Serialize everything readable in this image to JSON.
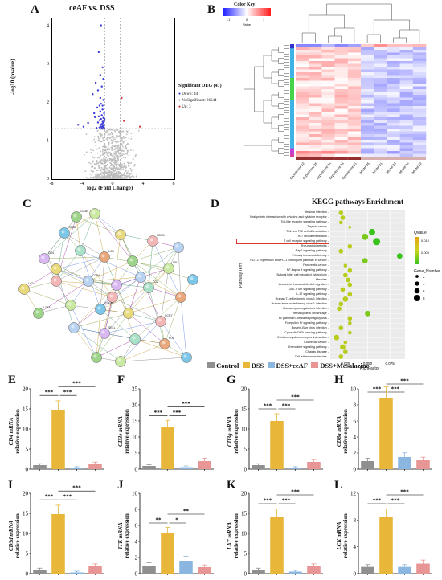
{
  "panel_labels": {
    "A": "A",
    "B": "B",
    "C": "C",
    "D": "D",
    "E": "E",
    "F": "F",
    "G": "G",
    "H": "H",
    "I": "I",
    "J": "J",
    "K": "K",
    "L": "L"
  },
  "volcano": {
    "title": "ceAF vs. DSS",
    "xlabel": "log2 (Fold Change)",
    "ylabel": "-log10 (pvalue)",
    "legend_title": "Significant DEG (47)",
    "legend_items": [
      {
        "label": "Down: 44",
        "color": "#3a3ad6"
      },
      {
        "label": "NoSignificant: 36644",
        "color": "#bdbdbd"
      },
      {
        "label": "Up: 3",
        "color": "#d63a3a"
      }
    ]
  },
  "heatmap": {
    "color_key_label": "Color Key",
    "value_label": "Value",
    "scale_ticks": [
      "-1",
      "0",
      "1"
    ],
    "columns": [
      "Experiment-22",
      "Experiment-25",
      "Experiment-24",
      "Experiment-23",
      "Experiment-21",
      "Model-25",
      "Model-21",
      "Model-23",
      "Model-24",
      "Model-22"
    ]
  },
  "kegg": {
    "title": "KEGG pathways Enrichment",
    "ylabel": "Pathway.Term",
    "xlabel": "RichFactor",
    "legend_qvalue_title": "Qvalue",
    "legend_gene_title": "Gene_Number",
    "highlight": "T cell receptor signaling pathway",
    "colors": {
      "low": "#e8a013",
      "mid": "#c9d51b",
      "high": "#38c21a"
    },
    "qvalue_ticks": [
      "0.010",
      "0.005"
    ],
    "gene_ticks": [
      "2",
      "4",
      "6",
      "8"
    ],
    "x_ticks": [
      "0.025",
      "0.050",
      "0.075"
    ],
    "rows": [
      {
        "term": "Yersinia infection",
        "rich": 0.02,
        "n": 3
      },
      {
        "term": "Viral protein interaction with cytokine and cytokine receptor",
        "rich": 0.022,
        "n": 3
      },
      {
        "term": "Toll-like receptor signaling pathway",
        "rich": 0.02,
        "n": 2
      },
      {
        "term": "Thyroid cancer",
        "rich": 0.03,
        "n": 1
      },
      {
        "term": "Th1 and Th2 cell differentiation",
        "rich": 0.055,
        "n": 5
      },
      {
        "term": "Th17 cell differentiation",
        "rich": 0.047,
        "n": 5
      },
      {
        "term": "T cell receptor signaling pathway",
        "rich": 0.06,
        "n": 6
      },
      {
        "term": "Rheumatoid arthritis",
        "rich": 0.03,
        "n": 3
      },
      {
        "term": "Rap1 signaling pathway",
        "rich": 0.02,
        "n": 3
      },
      {
        "term": "Primary immunodeficiency",
        "rich": 0.086,
        "n": 4
      },
      {
        "term": "PD-L1 expression and PD-1 checkpoint pathway in cancer",
        "rich": 0.047,
        "n": 4
      },
      {
        "term": "Pancreatic cancer",
        "rich": 0.025,
        "n": 2
      },
      {
        "term": "NF-kappa B signaling pathway",
        "rich": 0.03,
        "n": 3
      },
      {
        "term": "Natural killer cell mediated cytotoxicity",
        "rich": 0.025,
        "n": 3
      },
      {
        "term": "Measles",
        "rich": 0.028,
        "n": 3
      },
      {
        "term": "Leukocyte transendothelial migration",
        "rich": 0.03,
        "n": 3
      },
      {
        "term": "JAK-STAT signaling pathway",
        "rich": 0.022,
        "n": 3
      },
      {
        "term": "IL-17 signaling pathway",
        "rich": 0.03,
        "n": 3
      },
      {
        "term": "Human T-cell leukemia virus 1 infection",
        "rich": 0.025,
        "n": 4
      },
      {
        "term": "Human immunodeficiency virus 1 infection",
        "rich": 0.02,
        "n": 3
      },
      {
        "term": "Human cytomegalovirus infection",
        "rich": 0.018,
        "n": 3
      },
      {
        "term": "Hematopoietic cell lineage",
        "rich": 0.05,
        "n": 4
      },
      {
        "term": "Fc gamma R-mediated phagocytosis",
        "rich": 0.03,
        "n": 3
      },
      {
        "term": "Fc epsilon RI signaling pathway",
        "rich": 0.03,
        "n": 2
      },
      {
        "term": "Epstein-Barr virus infection",
        "rich": 0.02,
        "n": 3
      },
      {
        "term": "Cytosolic DNA-sensing pathway",
        "rich": 0.03,
        "n": 2
      },
      {
        "term": "Cytokine-cytokine receptor interaction",
        "rich": 0.015,
        "n": 4
      },
      {
        "term": "Colorectal cancer",
        "rich": 0.025,
        "n": 2
      },
      {
        "term": "Chemokine signaling pathway",
        "rich": 0.022,
        "n": 4
      },
      {
        "term": "Chagas disease",
        "rich": 0.025,
        "n": 3
      },
      {
        "term": "Cell adhesion molecules",
        "rich": 0.02,
        "n": 3
      }
    ]
  },
  "network": {
    "genes": [
      "CD3E",
      "CD3D",
      "CD3G",
      "CD4",
      "LCK",
      "ITK",
      "LAT",
      "CD8A",
      "CD2",
      "IL2RA",
      "GZMB",
      "CCR7",
      "SELL",
      "FOS"
    ]
  },
  "bar_legend": [
    {
      "label": "Control",
      "color": "#8f8f8f"
    },
    {
      "label": "DSS",
      "color": "#e8b73a"
    },
    {
      "label": "DSS+ceAF",
      "color": "#8bb6e0"
    },
    {
      "label": "DSS+Mesalazine",
      "color": "#e89595"
    }
  ],
  "y_axis_suffix": "relative expression",
  "chart_data": [
    {
      "type": "bar",
      "panel": "E",
      "gene": "CD4 mRNA",
      "categories": [
        "Control",
        "DSS",
        "DSS+ceAF",
        "DSS+Mesalazine"
      ],
      "values": [
        1.0,
        14.8,
        0.3,
        1.3
      ],
      "ylim": [
        0,
        20
      ],
      "ticks": [
        "0",
        "5",
        "10",
        "15",
        "20"
      ],
      "sig": [
        {
          "a": 0,
          "b": 1,
          "label": "***"
        },
        {
          "a": 1,
          "b": 2,
          "label": "***"
        },
        {
          "a": 1,
          "b": 3,
          "label": "***"
        }
      ]
    },
    {
      "type": "bar",
      "panel": "F",
      "gene": "CD3e mRNA",
      "categories": [
        "Control",
        "DSS",
        "DSS+ceAF",
        "DSS+Mesalazine"
      ],
      "values": [
        1.0,
        13.2,
        0.6,
        2.5
      ],
      "ylim": [
        0,
        25
      ],
      "ticks": [
        "0",
        "5",
        "10",
        "15",
        "20",
        "25"
      ],
      "sig": [
        {
          "a": 0,
          "b": 1,
          "label": "***"
        },
        {
          "a": 1,
          "b": 2,
          "label": "***"
        },
        {
          "a": 1,
          "b": 3,
          "label": "***"
        }
      ]
    },
    {
      "type": "bar",
      "panel": "G",
      "gene": "CD3g mRNA",
      "categories": [
        "Control",
        "DSS",
        "DSS+ceAF",
        "DSS+Mesalazine"
      ],
      "values": [
        1.0,
        12.0,
        0.3,
        1.8
      ],
      "ylim": [
        0,
        20
      ],
      "ticks": [
        "0",
        "5",
        "10",
        "15",
        "20"
      ],
      "sig": [
        {
          "a": 0,
          "b": 1,
          "label": "***"
        },
        {
          "a": 1,
          "b": 2,
          "label": "***"
        },
        {
          "a": 1,
          "b": 3,
          "label": "***"
        }
      ]
    },
    {
      "type": "bar",
      "panel": "H",
      "gene": "CD8a mRNA",
      "categories": [
        "Control",
        "DSS",
        "DSS+ceAF",
        "DSS+Mesalazine"
      ],
      "values": [
        1.0,
        8.9,
        1.5,
        1.1
      ],
      "ylim": [
        0,
        10
      ],
      "ticks": [
        "0",
        "2",
        "4",
        "6",
        "8",
        "10"
      ],
      "sig": [
        {
          "a": 0,
          "b": 1,
          "label": "***"
        },
        {
          "a": 1,
          "b": 2,
          "label": "***"
        },
        {
          "a": 1,
          "b": 3,
          "label": "***"
        }
      ]
    },
    {
      "type": "bar",
      "panel": "I",
      "gene": "CD3d mRNA",
      "categories": [
        "Control",
        "DSS",
        "DSS+ceAF",
        "DSS+Mesalazine"
      ],
      "values": [
        1.0,
        14.8,
        0.3,
        1.8
      ],
      "ylim": [
        0,
        20
      ],
      "ticks": [
        "0",
        "5",
        "10",
        "15",
        "20"
      ],
      "sig": [
        {
          "a": 0,
          "b": 1,
          "label": "***"
        },
        {
          "a": 1,
          "b": 2,
          "label": "***"
        },
        {
          "a": 1,
          "b": 3,
          "label": "***"
        }
      ]
    },
    {
      "type": "bar",
      "panel": "J",
      "gene": "ITK mRNA",
      "categories": [
        "Control",
        "DSS",
        "DSS+ceAF",
        "DSS+Mesalazine"
      ],
      "values": [
        1.0,
        5.0,
        1.6,
        0.8
      ],
      "ylim": [
        0,
        10
      ],
      "ticks": [
        "0",
        "2",
        "4",
        "6",
        "8",
        "10"
      ],
      "sig": [
        {
          "a": 0,
          "b": 1,
          "label": "**"
        },
        {
          "a": 1,
          "b": 2,
          "label": "*"
        },
        {
          "a": 1,
          "b": 3,
          "label": "**"
        }
      ]
    },
    {
      "type": "bar",
      "panel": "K",
      "gene": "LAT mRNA",
      "categories": [
        "Control",
        "DSS",
        "DSS+ceAF",
        "DSS+Mesalazine"
      ],
      "values": [
        1.0,
        14.0,
        0.5,
        1.8
      ],
      "ylim": [
        0,
        20
      ],
      "ticks": [
        "0",
        "5",
        "10",
        "15",
        "20"
      ],
      "sig": [
        {
          "a": 0,
          "b": 1,
          "label": "***"
        },
        {
          "a": 1,
          "b": 2,
          "label": "***"
        },
        {
          "a": 1,
          "b": 3,
          "label": "***"
        }
      ]
    },
    {
      "type": "bar",
      "panel": "L",
      "gene": "LCK mRNA",
      "categories": [
        "Control",
        "DSS",
        "DSS+ceAF",
        "DSS+Mesalazine"
      ],
      "values": [
        1.0,
        8.4,
        1.0,
        1.5
      ],
      "ylim": [
        0,
        12
      ],
      "ticks": [
        "0",
        "4",
        "8",
        "12"
      ],
      "sig": [
        {
          "a": 0,
          "b": 1,
          "label": "***"
        },
        {
          "a": 1,
          "b": 2,
          "label": "***"
        },
        {
          "a": 1,
          "b": 3,
          "label": "***"
        }
      ]
    }
  ]
}
